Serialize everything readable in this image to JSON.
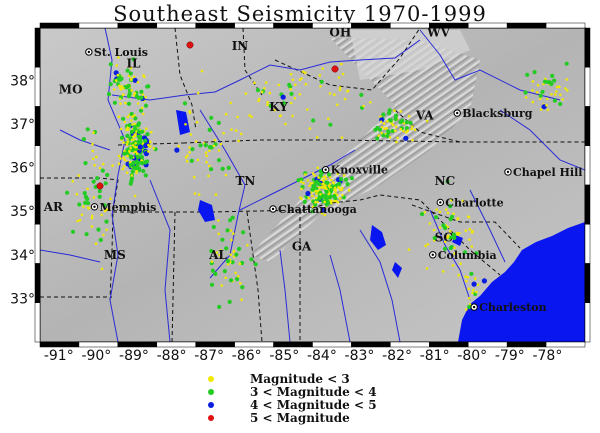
{
  "title": "Southeast Seismicity 1970-1999",
  "extent": {
    "lon_min": -91.5,
    "lon_max": -77.0,
    "lat_min": 32.0,
    "lat_max": 39.2
  },
  "lon_ticks": [
    "-91°",
    "-90°",
    "-89°",
    "-88°",
    "-87°",
    "-86°",
    "-85°",
    "-84°",
    "-83°",
    "-82°",
    "-81°",
    "-80°",
    "-79°",
    "-78°"
  ],
  "lon_tick_values": [
    -91,
    -90,
    -89,
    -88,
    -87,
    -86,
    -85,
    -84,
    -83,
    -82,
    -81,
    -80,
    -79,
    -78
  ],
  "lat_ticks": [
    "38°",
    "37°",
    "36°",
    "35°",
    "34°",
    "33°"
  ],
  "lat_tick_values": [
    38,
    37,
    36,
    35,
    34,
    33
  ],
  "states": [
    {
      "label": "IL",
      "lon": -89.2,
      "lat": 38.3
    },
    {
      "label": "IN",
      "lon": -86.4,
      "lat": 38.7
    },
    {
      "label": "OH",
      "lon": -83.8,
      "lat": 39.0
    },
    {
      "label": "WV",
      "lon": -81.2,
      "lat": 39.0
    },
    {
      "label": "MO",
      "lon": -91.0,
      "lat": 37.7
    },
    {
      "label": "KY",
      "lon": -85.4,
      "lat": 37.3
    },
    {
      "label": "VA",
      "lon": -81.5,
      "lat": 37.1
    },
    {
      "label": "TN",
      "lon": -86.3,
      "lat": 35.6
    },
    {
      "label": "NC",
      "lon": -81.0,
      "lat": 35.6
    },
    {
      "label": "AR",
      "lon": -91.4,
      "lat": 35.0
    },
    {
      "label": "SC",
      "lon": -81.0,
      "lat": 34.3
    },
    {
      "label": "GA",
      "lon": -84.8,
      "lat": 34.1
    },
    {
      "label": "AL",
      "lon": -87.0,
      "lat": 33.9
    },
    {
      "label": "MS",
      "lon": -89.8,
      "lat": 33.9
    }
  ],
  "cities": [
    {
      "label": "St. Louis",
      "lon": -90.2,
      "lat": 38.65
    },
    {
      "label": "Blacksburg",
      "lon": -80.4,
      "lat": 37.25
    },
    {
      "label": "Knoxville",
      "lon": -83.9,
      "lat": 35.95
    },
    {
      "label": "Chapel Hill",
      "lon": -79.05,
      "lat": 35.9
    },
    {
      "label": "Memphis",
      "lon": -90.05,
      "lat": 35.1
    },
    {
      "label": "Chattanooga",
      "lon": -85.3,
      "lat": 35.05
    },
    {
      "label": "Charlotte",
      "lon": -80.85,
      "lat": 35.2
    },
    {
      "label": "Columbia",
      "lon": -81.05,
      "lat": 34.0
    },
    {
      "label": "Charleston",
      "lon": -79.95,
      "lat": 32.8
    }
  ],
  "legend": [
    {
      "label": "Magnitude < 3",
      "color": "#f0e800"
    },
    {
      "label": "3 < Magnitude < 4",
      "color": "#22cc22"
    },
    {
      "label": "4 < Magnitude < 5",
      "color": "#0a1ee0"
    },
    {
      "label": "5 < Magnitude",
      "color": "#e01010"
    }
  ],
  "colors": {
    "ocean": "#0a16f0",
    "land": "#b8b8b8",
    "rivers": "#2a2ad8"
  }
}
